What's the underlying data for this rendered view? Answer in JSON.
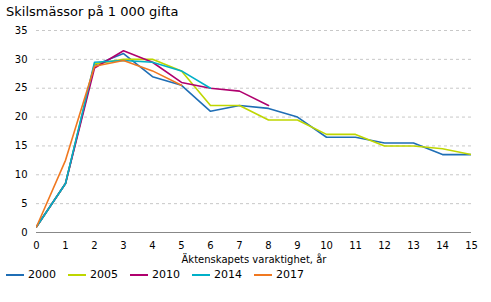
{
  "chart_data": {
    "type": "line",
    "title": "Skilsmässor på 1 000 gifta",
    "x_label": "Äktenskapets varaktighet, år",
    "x": [
      0,
      1,
      2,
      3,
      4,
      5,
      6,
      7,
      8,
      9,
      10,
      11,
      12,
      13,
      14,
      15
    ],
    "series": [
      {
        "name": "2000",
        "color": "#1f6eb5",
        "values": [
          1.0,
          8.5,
          29.0,
          31.0,
          27.0,
          25.5,
          21.0,
          22.0,
          21.5,
          20.0,
          16.5,
          16.5,
          15.5,
          15.5,
          13.5,
          13.5
        ]
      },
      {
        "name": "2005",
        "color": "#bed600",
        "values": [
          1.0,
          8.5,
          29.2,
          30.0,
          30.0,
          28.0,
          22.0,
          22.0,
          19.5,
          19.5,
          17.0,
          17.0,
          15.0,
          15.0,
          14.5,
          13.5
        ]
      },
      {
        "name": "2010",
        "color": "#b0006e",
        "values": [
          1.0,
          8.5,
          28.5,
          31.5,
          29.5,
          26.0,
          25.0,
          24.5,
          22.0,
          null,
          null,
          null,
          null,
          null,
          null,
          null
        ]
      },
      {
        "name": "2014",
        "color": "#00b0c8",
        "values": [
          1.0,
          8.5,
          29.5,
          29.8,
          29.5,
          28.0,
          25.0,
          null,
          null,
          null,
          null,
          null,
          null,
          null,
          null,
          null
        ]
      },
      {
        "name": "2017",
        "color": "#f07820",
        "values": [
          1.0,
          12.5,
          28.8,
          29.8,
          28.0,
          25.5,
          null,
          null,
          null,
          null,
          null,
          null,
          null,
          null,
          null,
          null
        ]
      }
    ],
    "xlim": [
      0,
      15
    ],
    "ylim": [
      0,
      35
    ],
    "xticks": [
      0,
      1,
      2,
      3,
      4,
      5,
      6,
      7,
      8,
      9,
      10,
      11,
      12,
      13,
      14,
      15
    ],
    "yticks": [
      0,
      5,
      10,
      15,
      20,
      25,
      30,
      35
    ],
    "grid": true,
    "legend": "lower left"
  }
}
